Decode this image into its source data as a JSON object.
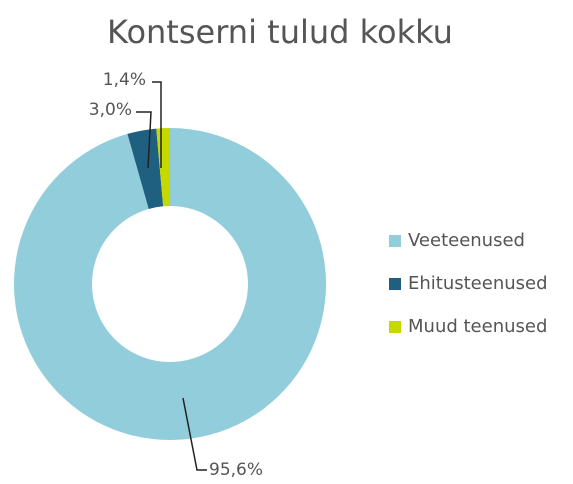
{
  "chart_data": {
    "type": "donut",
    "title": "Kontserni tulud kokku",
    "categories": [
      "Veeteenused",
      "Ehitusteenused",
      "Muud teenused"
    ],
    "values": [
      95.6,
      3.0,
      1.4
    ],
    "value_labels": [
      "95,6%",
      "3,0%",
      "1,4%"
    ],
    "colors": [
      "#92cddc",
      "#1f5f7f",
      "#c5d800"
    ],
    "legend": "right"
  }
}
